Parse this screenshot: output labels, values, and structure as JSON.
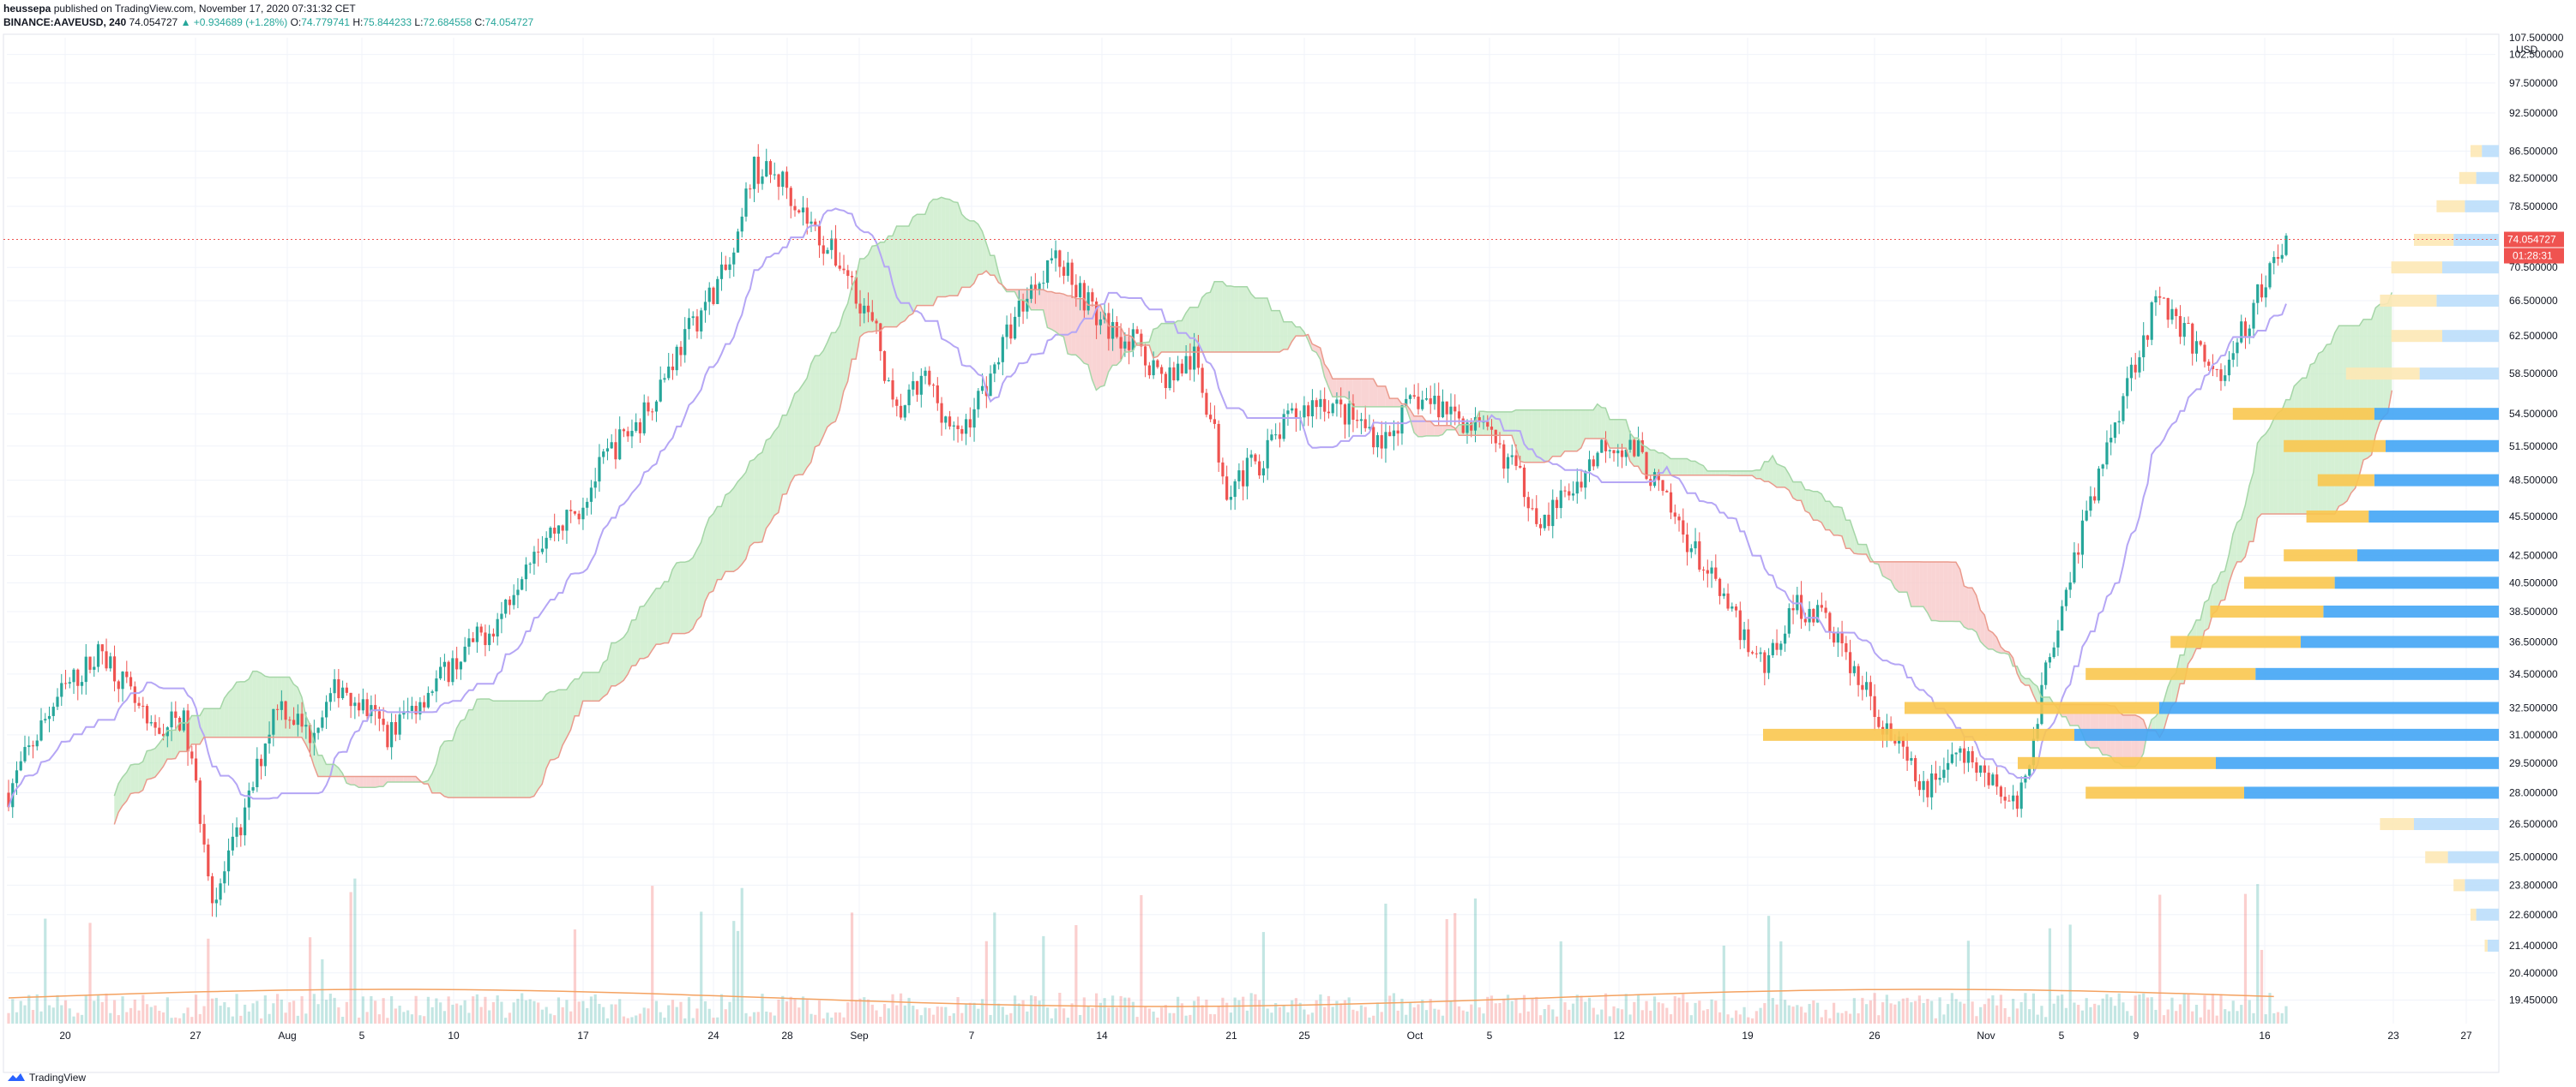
{
  "header": {
    "author": "heussepa",
    "published": "published on TradingView.com, November 17, 2020 07:31:32 CET",
    "symbol": "BINANCE:AAVEUSD, 240",
    "last": "74.054727",
    "change": "+0.934689 (+1.28%)",
    "o_label": "O:",
    "o_val": "74.779741",
    "h_label": "H:",
    "h_val": "75.844233",
    "l_label": "L:",
    "l_val": "72.684558",
    "c_label": "C:",
    "c_val": "74.054727"
  },
  "footer": {
    "brand": "TradingView"
  },
  "colors": {
    "up": "#26a69a",
    "down": "#ef5350",
    "kijun": "#b5a6f5",
    "spanA": "#f4a8a0",
    "spanB": "#ea9a8c",
    "cloud_green": "#c7ebc6",
    "cloud_red": "#f7c6c6",
    "vp_blue": "#42a5f5",
    "vp_yellow": "#f9c74f",
    "vp_blue_light": "#bbdefb",
    "vp_yellow_light": "#fde8b5",
    "price_tag": "#ef5350"
  },
  "chart_data": {
    "type": "candlestick",
    "price_axis": {
      "unit": "USD",
      "top_label": "107.500000",
      "labels": [
        "102.500000",
        "97.500000",
        "92.500000",
        "86.500000",
        "82.500000",
        "78.500000",
        "74.054727",
        "70.500000",
        "66.500000",
        "62.500000",
        "58.500000",
        "54.500000",
        "51.500000",
        "48.500000",
        "45.500000",
        "42.500000",
        "40.500000",
        "38.500000",
        "36.500000",
        "34.500000",
        "32.500000",
        "31.000000",
        "29.500000",
        "28.000000",
        "26.500000",
        "25.000000",
        "23.800000",
        "22.600000",
        "21.400000",
        "20.400000",
        "19.450000"
      ],
      "current_price": "74.054727",
      "countdown": "01:28:31"
    },
    "time_axis": {
      "labels": [
        "20",
        "27",
        "Aug",
        "5",
        "10",
        "17",
        "24",
        "28",
        "Sep",
        "7",
        "14",
        "21",
        "25",
        "Oct",
        "5",
        "12",
        "19",
        "26",
        "Nov",
        "5",
        "9",
        "16",
        "23",
        "27"
      ]
    },
    "price_points": [
      [
        0,
        28
      ],
      [
        3,
        33
      ],
      [
        6,
        36
      ],
      [
        9,
        31
      ],
      [
        11,
        32
      ],
      [
        13,
        23
      ],
      [
        15,
        27
      ],
      [
        17,
        33
      ],
      [
        19,
        31
      ],
      [
        21,
        34
      ],
      [
        24,
        31
      ],
      [
        26,
        33
      ],
      [
        28,
        35
      ],
      [
        31,
        38
      ],
      [
        33,
        43
      ],
      [
        36,
        46
      ],
      [
        38,
        51
      ],
      [
        40,
        54
      ],
      [
        42,
        60
      ],
      [
        44,
        66
      ],
      [
        46,
        72
      ],
      [
        47,
        84
      ],
      [
        49,
        82
      ],
      [
        51,
        75
      ],
      [
        53,
        70
      ],
      [
        55,
        62
      ],
      [
        56,
        54
      ],
      [
        58,
        58
      ],
      [
        60,
        52
      ],
      [
        62,
        58
      ],
      [
        64,
        66
      ],
      [
        66,
        72
      ],
      [
        67,
        70
      ],
      [
        69,
        64
      ],
      [
        71,
        62
      ],
      [
        73,
        58
      ],
      [
        75,
        60
      ],
      [
        77,
        48
      ],
      [
        79,
        50
      ],
      [
        81,
        54
      ],
      [
        83,
        56
      ],
      [
        85,
        54
      ],
      [
        87,
        52
      ],
      [
        89,
        56
      ],
      [
        91,
        55
      ],
      [
        93,
        53
      ],
      [
        95,
        50
      ],
      [
        97,
        45
      ],
      [
        99,
        48
      ],
      [
        101,
        52
      ],
      [
        103,
        51
      ],
      [
        105,
        46
      ],
      [
        107,
        42
      ],
      [
        109,
        38
      ],
      [
        111,
        35
      ],
      [
        113,
        39
      ],
      [
        115,
        38
      ],
      [
        117,
        34
      ],
      [
        119,
        31
      ],
      [
        121,
        28
      ],
      [
        123,
        30
      ],
      [
        125,
        29
      ],
      [
        127,
        27
      ],
      [
        128,
        31
      ],
      [
        130,
        40
      ],
      [
        132,
        48
      ],
      [
        134,
        58
      ],
      [
        136,
        67
      ],
      [
        138,
        62
      ],
      [
        140,
        58
      ],
      [
        142,
        66
      ],
      [
        144,
        74
      ]
    ],
    "volume_profile": [
      {
        "price": 86.5,
        "up": 4,
        "down": 6
      },
      {
        "price": 82.5,
        "up": 6,
        "down": 8
      },
      {
        "price": 78.5,
        "up": 10,
        "down": 12
      },
      {
        "price": 74.0,
        "up": 14,
        "down": 16
      },
      {
        "price": 70.5,
        "up": 18,
        "down": 20
      },
      {
        "price": 66.5,
        "up": 20,
        "down": 22
      },
      {
        "price": 62.5,
        "up": 18,
        "down": 20
      },
      {
        "price": 58.5,
        "up": 26,
        "down": 28
      },
      {
        "price": 54.5,
        "up": 50,
        "down": 44
      },
      {
        "price": 51.5,
        "up": 36,
        "down": 40
      },
      {
        "price": 48.5,
        "up": 20,
        "down": 44
      },
      {
        "price": 45.5,
        "up": 22,
        "down": 46
      },
      {
        "price": 42.5,
        "up": 26,
        "down": 50
      },
      {
        "price": 40.5,
        "up": 32,
        "down": 58
      },
      {
        "price": 38.5,
        "up": 40,
        "down": 62
      },
      {
        "price": 36.5,
        "up": 46,
        "down": 70
      },
      {
        "price": 34.5,
        "up": 60,
        "down": 86
      },
      {
        "price": 32.5,
        "up": 90,
        "down": 120
      },
      {
        "price": 31.0,
        "up": 110,
        "down": 150
      },
      {
        "price": 29.5,
        "up": 70,
        "down": 100
      },
      {
        "price": 28.0,
        "up": 56,
        "down": 90
      },
      {
        "price": 26.5,
        "up": 12,
        "down": 30
      },
      {
        "price": 25.0,
        "up": 8,
        "down": 18
      },
      {
        "price": 23.8,
        "up": 4,
        "down": 12
      },
      {
        "price": 22.6,
        "up": 2,
        "down": 8
      },
      {
        "price": 21.4,
        "up": 1,
        "down": 4
      }
    ]
  }
}
